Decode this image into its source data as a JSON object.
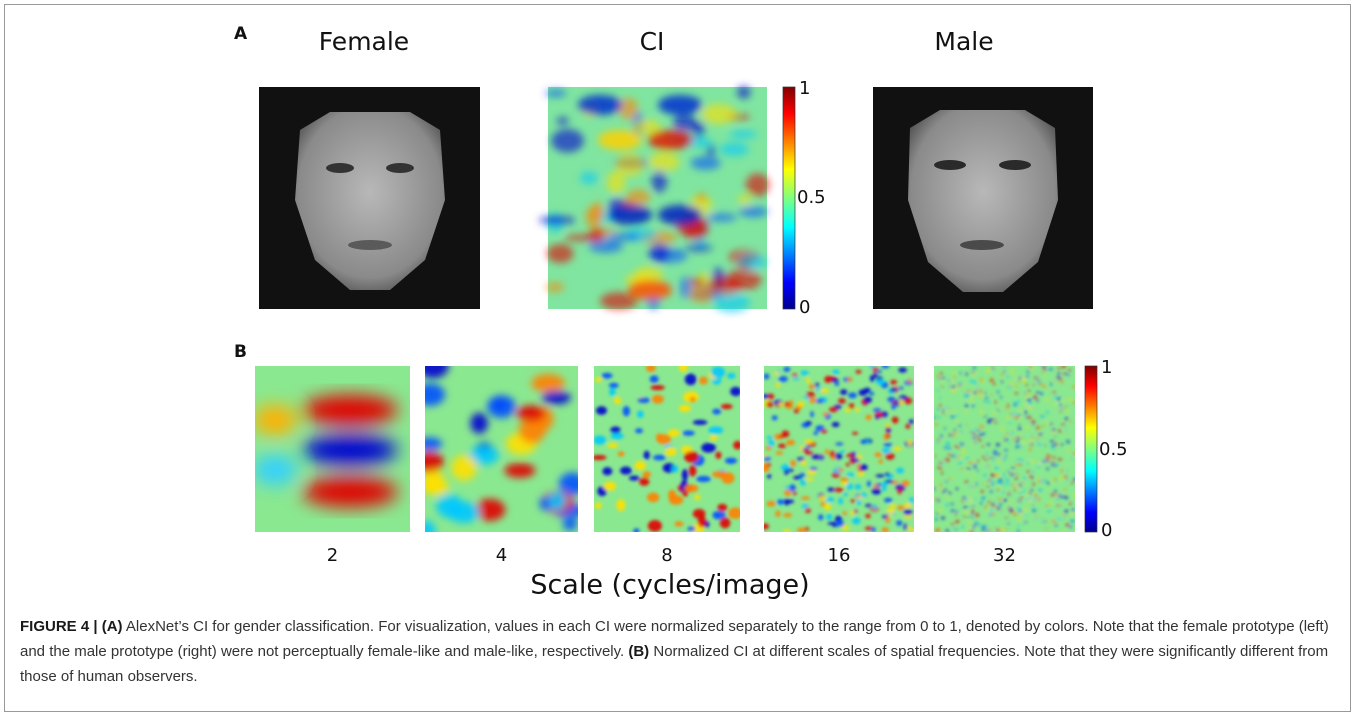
{
  "panel_a": {
    "label": "A",
    "titles": [
      "Female",
      "CI",
      "Male"
    ],
    "colorbar_ticks": [
      "1",
      "0.5",
      "0"
    ]
  },
  "panel_b": {
    "label": "B",
    "scales": [
      "2",
      "4",
      "8",
      "16",
      "32"
    ],
    "colorbar_ticks": [
      "1",
      "0.5",
      "0"
    ],
    "axis_label": "Scale (cycles/image)"
  },
  "caption": {
    "lead": "FIGURE 4 | (A)",
    "text_a": "AlexNet’s CI for gender classification. For visualization, values in each CI were normalized separately to the range from 0 to 1, denoted by colors. Note that the female prototype (left) and the male prototype (right) were not perceptually female-like and male-like, respectively.",
    "lead_b": "(B)",
    "text_b": "Normalized CI at different scales of spatial frequencies. Note that they were significantly different from those of human observers."
  }
}
